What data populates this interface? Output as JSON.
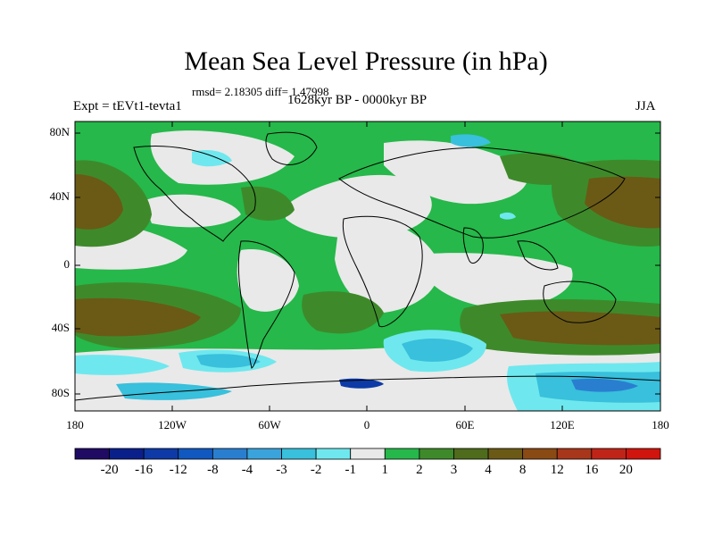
{
  "title": "Mean Sea Level Pressure (in hPa)",
  "stats": "rmsd= 2.18305 diff= 1.47998",
  "experiment": "Expt = tEVt1-tevta1",
  "period": "1628kyr BP - 0000kyr BP",
  "season": "JJA",
  "map": {
    "lat_labels": [
      "80N",
      "40N",
      "0",
      "40S",
      "80S"
    ],
    "lon_labels": [
      "180",
      "120W",
      "60W",
      "0",
      "60E",
      "120E",
      "180"
    ]
  },
  "colorbar": {
    "labels": [
      "-20",
      "-16",
      "-12",
      "-8",
      "-4",
      "-3",
      "-2",
      "-1",
      "1",
      "2",
      "3",
      "4",
      "8",
      "12",
      "16",
      "20"
    ],
    "colors": [
      "#1f0b63",
      "#0b1f8a",
      "#0d3aa6",
      "#1158c0",
      "#2a7ed0",
      "#3aa3dc",
      "#38c0dc",
      "#6ee8ee",
      "#e9e9e9",
      "#26b84a",
      "#3e8a2a",
      "#4f6b1c",
      "#6a5a16",
      "#8a4a14",
      "#a8361a",
      "#c02418",
      "#d0140e"
    ]
  },
  "palette": {
    "land_line": "#000000",
    "neutral": "#e9e9e9",
    "green": "#26b84a",
    "olive": "#3e8a2a",
    "brown": "#6a5a16",
    "cyan": "#38c0dc",
    "lightcyan": "#6ee8ee",
    "blue": "#2a7ed0"
  }
}
